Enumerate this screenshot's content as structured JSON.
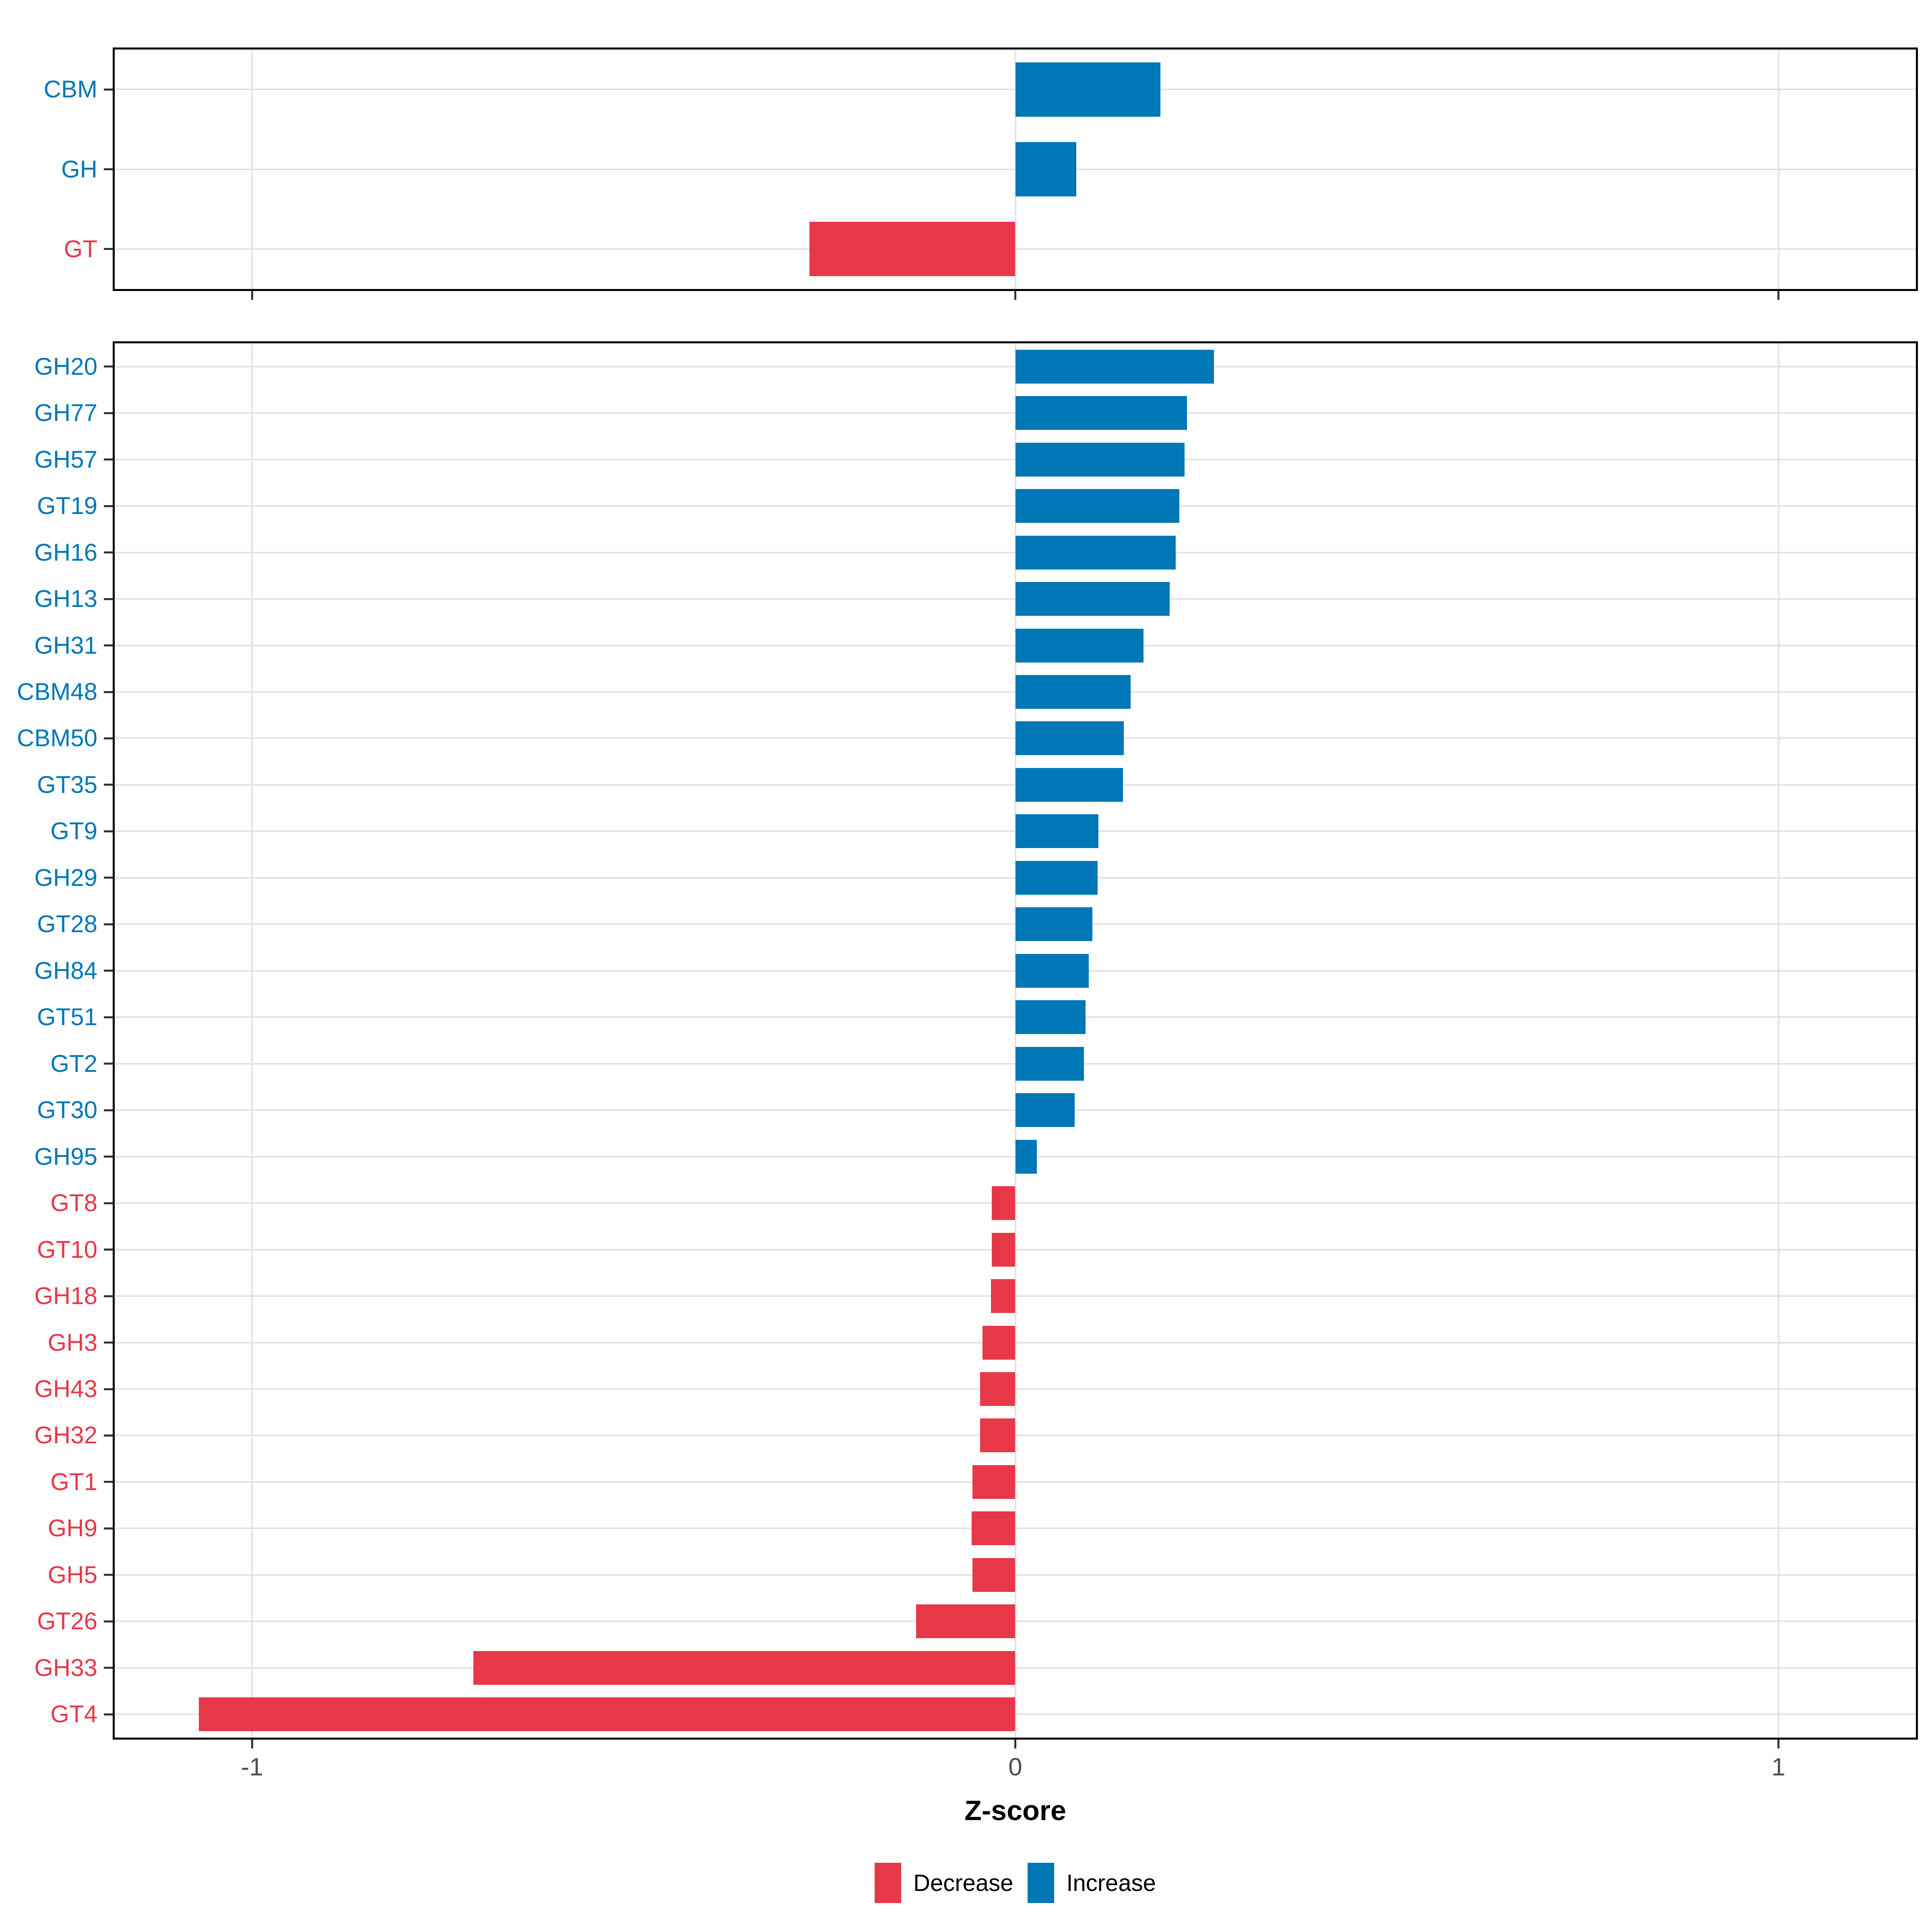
{
  "figure": {
    "xlabel": "Z-score",
    "x_tick_labels": [
      "-1",
      "0",
      "1"
    ],
    "x_tick_values": [
      -1,
      0,
      1
    ],
    "xlim": [
      -1.18,
      1.18
    ]
  },
  "colors": {
    "increase": "#0077B6",
    "decrease": "#E73848",
    "grid": "#E3E3E3",
    "panel_border": "#000000",
    "tick": "#333333",
    "tick_label_text": "#4D4D4D",
    "axis_title_text": "#000000",
    "background": "#FFFFFF"
  },
  "legend": {
    "position": "bottom",
    "items": [
      {
        "label": "Decrease",
        "key": "decrease"
      },
      {
        "label": "Increase",
        "key": "increase"
      }
    ]
  },
  "chart_data": [
    {
      "type": "bar",
      "panel": "top",
      "orientation": "horizontal",
      "title": "",
      "xlabel": "",
      "ylabel": "",
      "xlim": [
        -1.18,
        1.18
      ],
      "x_ticks": [
        -1,
        0,
        1
      ],
      "grid": true,
      "categories": [
        "CBM",
        "GH",
        "GT"
      ],
      "values": [
        0.19,
        0.08,
        -0.27
      ],
      "directions": [
        "Increase",
        "Increase",
        "Decrease"
      ]
    },
    {
      "type": "bar",
      "panel": "bottom",
      "orientation": "horizontal",
      "title": "",
      "xlabel": "Z-score",
      "ylabel": "",
      "xlim": [
        -1.18,
        1.18
      ],
      "x_ticks": [
        -1,
        0,
        1
      ],
      "grid": true,
      "categories": [
        "GH20",
        "GH77",
        "GH57",
        "GT19",
        "GH16",
        "GH13",
        "GH31",
        "CBM48",
        "CBM50",
        "GT35",
        "GT9",
        "GH29",
        "GT28",
        "GH84",
        "GT51",
        "GT2",
        "GT30",
        "GH95",
        "GT8",
        "GT10",
        "GH18",
        "GH3",
        "GH43",
        "GH32",
        "GT1",
        "GH9",
        "GH5",
        "GT26",
        "GH33",
        "GT4"
      ],
      "values": [
        0.26,
        0.225,
        0.222,
        0.215,
        0.21,
        0.202,
        0.168,
        0.151,
        0.142,
        0.141,
        0.109,
        0.108,
        0.101,
        0.096,
        0.092,
        0.09,
        0.078,
        0.028,
        -0.031,
        -0.031,
        -0.032,
        -0.043,
        -0.046,
        -0.046,
        -0.056,
        -0.057,
        -0.056,
        -0.13,
        -0.71,
        -1.07
      ],
      "directions": [
        "Increase",
        "Increase",
        "Increase",
        "Increase",
        "Increase",
        "Increase",
        "Increase",
        "Increase",
        "Increase",
        "Increase",
        "Increase",
        "Increase",
        "Increase",
        "Increase",
        "Increase",
        "Increase",
        "Increase",
        "Increase",
        "Decrease",
        "Decrease",
        "Decrease",
        "Decrease",
        "Decrease",
        "Decrease",
        "Decrease",
        "Decrease",
        "Decrease",
        "Decrease",
        "Decrease",
        "Decrease"
      ]
    }
  ]
}
